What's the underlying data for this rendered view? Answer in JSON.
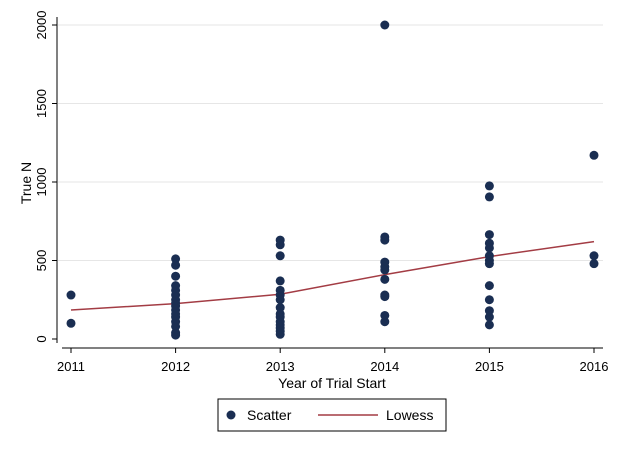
{
  "chart_data": {
    "type": "scatter",
    "title": "",
    "xlabel": "Year of Trial Start",
    "ylabel": "True N",
    "xlim": [
      2011,
      2016
    ],
    "ylim": [
      0,
      2000
    ],
    "x_ticks": [
      "2011",
      "2012",
      "2013",
      "2014",
      "2015",
      "2016"
    ],
    "y_ticks": [
      "0",
      "500",
      "1000",
      "1500",
      "2000"
    ],
    "grid": "horizontal",
    "legend_position": "bottom",
    "colors": {
      "scatter": "#1a2e52",
      "lowess": "#a33c44"
    },
    "series": [
      {
        "name": "Scatter",
        "kind": "scatter",
        "points": [
          [
            2011,
            280
          ],
          [
            2011,
            100
          ],
          [
            2012,
            510
          ],
          [
            2012,
            470
          ],
          [
            2012,
            400
          ],
          [
            2012,
            340
          ],
          [
            2012,
            310
          ],
          [
            2012,
            280
          ],
          [
            2012,
            250
          ],
          [
            2012,
            230
          ],
          [
            2012,
            210
          ],
          [
            2012,
            185
          ],
          [
            2012,
            160
          ],
          [
            2012,
            140
          ],
          [
            2012,
            110
          ],
          [
            2012,
            80
          ],
          [
            2012,
            40
          ],
          [
            2012,
            25
          ],
          [
            2013,
            630
          ],
          [
            2013,
            600
          ],
          [
            2013,
            530
          ],
          [
            2013,
            370
          ],
          [
            2013,
            310
          ],
          [
            2013,
            280
          ],
          [
            2013,
            250
          ],
          [
            2013,
            200
          ],
          [
            2013,
            160
          ],
          [
            2013,
            140
          ],
          [
            2013,
            110
          ],
          [
            2013,
            90
          ],
          [
            2013,
            70
          ],
          [
            2013,
            50
          ],
          [
            2013,
            30
          ],
          [
            2014,
            2000
          ],
          [
            2014,
            650
          ],
          [
            2014,
            630
          ],
          [
            2014,
            490
          ],
          [
            2014,
            460
          ],
          [
            2014,
            440
          ],
          [
            2014,
            380
          ],
          [
            2014,
            280
          ],
          [
            2014,
            270
          ],
          [
            2014,
            150
          ],
          [
            2014,
            110
          ],
          [
            2015,
            975
          ],
          [
            2015,
            905
          ],
          [
            2015,
            665
          ],
          [
            2015,
            610
          ],
          [
            2015,
            580
          ],
          [
            2015,
            530
          ],
          [
            2015,
            500
          ],
          [
            2015,
            480
          ],
          [
            2015,
            340
          ],
          [
            2015,
            250
          ],
          [
            2015,
            180
          ],
          [
            2015,
            140
          ],
          [
            2015,
            90
          ],
          [
            2016,
            1170
          ],
          [
            2016,
            530
          ],
          [
            2016,
            480
          ]
        ]
      },
      {
        "name": "Lowess",
        "kind": "line",
        "points": [
          [
            2011,
            185
          ],
          [
            2012,
            225
          ],
          [
            2013,
            285
          ],
          [
            2014,
            410
          ],
          [
            2015,
            525
          ],
          [
            2016,
            620
          ]
        ]
      }
    ]
  }
}
